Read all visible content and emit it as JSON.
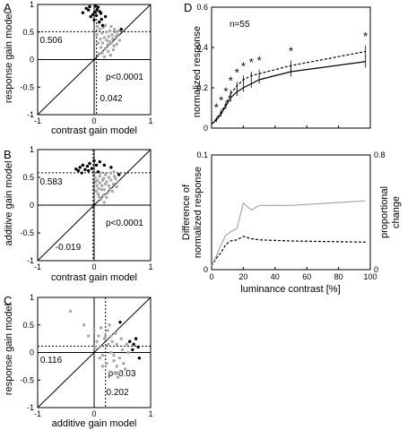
{
  "panel_labels": [
    "A",
    "B",
    "C",
    "D"
  ],
  "chart_data": [
    {
      "panel": "A",
      "type": "scatter",
      "xlabel": "contrast gain model",
      "ylabel": "response gain model",
      "xlim": [
        -1,
        1
      ],
      "ylim": [
        -1,
        1
      ],
      "xticks": [
        "-1",
        "0",
        "1"
      ],
      "yticks": [
        "-1",
        "-0.5",
        "0",
        "0.5",
        "1"
      ],
      "diagonal": true,
      "grid": false,
      "ref_x": 0.042,
      "ref_y": 0.506,
      "annotations": {
        "ref_y": "0.506",
        "ref_x": "0.042",
        "p": "p<0.0001"
      },
      "series": [
        {
          "color": "#000000",
          "values": [
            [
              -0.14,
              0.93
            ],
            [
              -0.08,
              0.96
            ],
            [
              0.02,
              0.97
            ],
            [
              0.07,
              0.95
            ],
            [
              -0.2,
              0.85
            ],
            [
              0.01,
              0.86
            ],
            [
              0.1,
              0.87
            ],
            [
              0.04,
              0.8
            ],
            [
              -0.06,
              0.78
            ],
            [
              0.13,
              0.73
            ],
            [
              0.2,
              0.78
            ],
            [
              -0.1,
              0.9
            ],
            [
              0.09,
              0.68
            ],
            [
              0.48,
              0.55
            ],
            [
              0.0,
              0.72
            ],
            [
              0.05,
              0.9
            ],
            [
              -0.02,
              0.82
            ],
            [
              0.15,
              0.62
            ],
            [
              0.12,
              0.84
            ]
          ]
        },
        {
          "color": "#a8a8a8",
          "values": [
            [
              0.06,
              0.6
            ],
            [
              0.1,
              0.55
            ],
            [
              0.14,
              0.48
            ],
            [
              0.18,
              0.4
            ],
            [
              0.22,
              0.35
            ],
            [
              0.26,
              0.42
            ],
            [
              0.3,
              0.3
            ],
            [
              0.35,
              0.25
            ],
            [
              0.32,
              0.45
            ],
            [
              0.28,
              0.52
            ],
            [
              0.38,
              0.5
            ],
            [
              0.42,
              0.45
            ],
            [
              0.45,
              0.35
            ],
            [
              0.4,
              0.28
            ],
            [
              0.2,
              0.2
            ],
            [
              0.25,
              0.15
            ],
            [
              0.15,
              0.3
            ],
            [
              0.12,
              0.22
            ],
            [
              0.33,
              0.38
            ],
            [
              0.05,
              0.45
            ],
            [
              0.08,
              0.1
            ],
            [
              0.18,
              0.05
            ],
            [
              0.36,
              0.55
            ],
            [
              0.22,
              0.5
            ],
            [
              0.3,
              0.6
            ],
            [
              0.16,
              0.58
            ],
            [
              0.44,
              0.52
            ],
            [
              0.27,
              0.33
            ],
            [
              0.11,
              0.37
            ],
            [
              0.24,
              0.27
            ],
            [
              0.2,
              0.62
            ],
            [
              0.39,
              0.42
            ],
            [
              0.34,
              0.18
            ],
            [
              0.14,
              0.12
            ],
            [
              0.29,
              0.08
            ],
            [
              0.07,
              0.3
            ]
          ]
        }
      ]
    },
    {
      "panel": "B",
      "type": "scatter",
      "xlabel": "contrast gain model",
      "ylabel": "additive gain model",
      "xlim": [
        -1,
        1
      ],
      "ylim": [
        -1,
        1
      ],
      "xticks": [
        "-1",
        "0",
        "1"
      ],
      "yticks": [
        "-1",
        "-0.5",
        "0",
        "0.5",
        "1"
      ],
      "diagonal": true,
      "grid": false,
      "ref_x": -0.019,
      "ref_y": 0.583,
      "annotations": {
        "ref_y": "0.583",
        "ref_x": "-0.019",
        "p": "p<0.0001"
      },
      "series": [
        {
          "color": "#000000",
          "values": [
            [
              -0.32,
              0.65
            ],
            [
              -0.28,
              0.62
            ],
            [
              -0.25,
              0.68
            ],
            [
              -0.2,
              0.72
            ],
            [
              -0.16,
              0.64
            ],
            [
              -0.12,
              0.7
            ],
            [
              -0.08,
              0.75
            ],
            [
              -0.04,
              0.66
            ],
            [
              0.0,
              0.8
            ],
            [
              0.04,
              0.72
            ],
            [
              -0.22,
              0.58
            ],
            [
              0.1,
              0.78
            ],
            [
              0.18,
              0.72
            ],
            [
              0.3,
              0.68
            ],
            [
              0.44,
              0.55
            ],
            [
              -0.1,
              0.62
            ],
            [
              0.07,
              0.6
            ]
          ]
        },
        {
          "color": "#a8a8a8",
          "values": [
            [
              0.02,
              0.5
            ],
            [
              0.06,
              0.45
            ],
            [
              0.1,
              0.4
            ],
            [
              0.14,
              0.35
            ],
            [
              0.18,
              0.28
            ],
            [
              0.08,
              0.3
            ],
            [
              0.04,
              0.25
            ],
            [
              0.22,
              0.42
            ],
            [
              0.26,
              0.5
            ],
            [
              0.3,
              0.45
            ],
            [
              0.34,
              0.38
            ],
            [
              0.16,
              0.18
            ],
            [
              0.12,
              0.1
            ],
            [
              0.2,
              0.55
            ],
            [
              0.38,
              0.48
            ],
            [
              0.28,
              0.3
            ],
            [
              0.1,
              0.52
            ],
            [
              0.05,
              0.35
            ],
            [
              0.24,
              0.22
            ],
            [
              0.15,
              0.45
            ],
            [
              0.35,
              0.6
            ],
            [
              0.42,
              0.42
            ],
            [
              0.09,
              0.15
            ],
            [
              0.18,
              0.05
            ],
            [
              0.32,
              0.25
            ],
            [
              0.26,
              0.35
            ],
            [
              0.03,
              0.42
            ],
            [
              0.22,
              0.14
            ],
            [
              0.13,
              0.28
            ],
            [
              0.4,
              0.33
            ],
            [
              0.07,
              0.2
            ],
            [
              0.36,
              0.52
            ],
            [
              0.2,
              0.38
            ],
            [
              0.29,
              0.58
            ],
            [
              0.11,
              0.58
            ],
            [
              0.17,
              0.48
            ]
          ]
        }
      ]
    },
    {
      "panel": "C",
      "type": "scatter",
      "xlabel": "additive gain model",
      "ylabel": "response gain model",
      "xlim": [
        -1,
        1
      ],
      "ylim": [
        -1,
        1
      ],
      "xticks": [
        "-1",
        "0",
        "1"
      ],
      "yticks": [
        "-1",
        "-0.5",
        "0",
        "0.5",
        "1"
      ],
      "diagonal": true,
      "grid": false,
      "ref_x": 0.202,
      "ref_y": 0.116,
      "annotations": {
        "ref_y": "0.116",
        "ref_x": "0.202",
        "p": "p=0.03"
      },
      "series": [
        {
          "color": "#000000",
          "values": [
            [
              0.63,
              0.2
            ],
            [
              0.7,
              0.15
            ],
            [
              0.74,
              0.25
            ],
            [
              0.78,
              0.1
            ],
            [
              0.8,
              -0.1
            ],
            [
              0.68,
              0.05
            ],
            [
              0.46,
              0.55
            ]
          ]
        },
        {
          "color": "#a8a8a8",
          "values": [
            [
              -0.42,
              0.75
            ],
            [
              -0.18,
              0.5
            ],
            [
              -0.1,
              0.3
            ],
            [
              0.0,
              0.4
            ],
            [
              0.05,
              0.2
            ],
            [
              0.1,
              0.1
            ],
            [
              0.15,
              -0.05
            ],
            [
              0.2,
              0.3
            ],
            [
              0.25,
              0.15
            ],
            [
              0.3,
              0.0
            ],
            [
              0.35,
              -0.15
            ],
            [
              0.4,
              -0.25
            ],
            [
              0.28,
              -0.35
            ],
            [
              0.45,
              -0.1
            ],
            [
              0.5,
              0.05
            ],
            [
              0.32,
              0.2
            ],
            [
              0.38,
              0.35
            ],
            [
              0.22,
              -0.2
            ],
            [
              0.12,
              0.45
            ],
            [
              0.18,
              0.25
            ],
            [
              0.42,
              -0.45
            ],
            [
              0.55,
              -0.3
            ],
            [
              0.6,
              0.0
            ],
            [
              0.27,
              0.5
            ],
            [
              0.08,
              0.3
            ],
            [
              0.48,
              0.25
            ],
            [
              0.35,
              -0.05
            ],
            [
              0.02,
              0.1
            ],
            [
              0.15,
              -0.25
            ],
            [
              0.3,
              0.3
            ],
            [
              0.52,
              -0.2
            ],
            [
              0.4,
              0.15
            ],
            [
              0.24,
              0.4
            ],
            [
              0.46,
              -0.35
            ],
            [
              0.1,
              -0.1
            ],
            [
              0.58,
              0.15
            ]
          ]
        }
      ]
    },
    {
      "panel": "D-top",
      "type": "line",
      "xlabel": "",
      "ylabel": "normalized response",
      "xlim": [
        0,
        100
      ],
      "ylim": [
        0,
        0.6
      ],
      "yticks": [
        "0",
        "0.2",
        "0.4",
        "0.6"
      ],
      "xticks": [
        "0",
        "20",
        "40",
        "60",
        "80",
        "100"
      ],
      "annotation": "n=55",
      "x": [
        0,
        3,
        6,
        9,
        12,
        16,
        20,
        25,
        30,
        50,
        97
      ],
      "series": [
        {
          "style": "solid",
          "values": [
            0.02,
            0.04,
            0.07,
            0.11,
            0.15,
            0.18,
            0.2,
            0.22,
            0.24,
            0.28,
            0.33
          ]
        },
        {
          "style": "dashed",
          "values": [
            0.02,
            0.045,
            0.08,
            0.12,
            0.17,
            0.21,
            0.24,
            0.26,
            0.27,
            0.31,
            0.38
          ]
        }
      ],
      "error": [
        0.005,
        0.01,
        0.012,
        0.015,
        0.02,
        0.02,
        0.02,
        0.02,
        0.02,
        0.025,
        0.03
      ],
      "significance_x": [
        3,
        6,
        9,
        12,
        16,
        20,
        25,
        30,
        50,
        97
      ],
      "significance_label": "*"
    },
    {
      "panel": "D-bottom",
      "type": "line",
      "xlabel": "luminance contrast [%]",
      "ylabel": [
        "Difference of",
        "normalized response"
      ],
      "ylabel_right": [
        "proportional",
        "change"
      ],
      "xlim": [
        0,
        100
      ],
      "ylim": [
        0,
        0.1
      ],
      "ylim_right": [
        0,
        0.8
      ],
      "xticks": [
        "0",
        "20",
        "40",
        "60",
        "80",
        "100"
      ],
      "yticks": [
        "0",
        "0.1"
      ],
      "yticks_right": [
        "0",
        "0.8"
      ],
      "x": [
        0,
        3,
        6,
        9,
        12,
        16,
        20,
        25,
        30,
        50,
        97
      ],
      "series": [
        {
          "style": "dashed",
          "color": "#000000",
          "values": [
            0.003,
            0.01,
            0.015,
            0.022,
            0.025,
            0.026,
            0.029,
            0.027,
            0.026,
            0.025,
            0.024
          ]
        },
        {
          "style": "solid",
          "color": "#a8a8a8",
          "values": [
            0.003,
            0.012,
            0.022,
            0.03,
            0.033,
            0.036,
            0.058,
            0.052,
            0.056,
            0.056,
            0.06
          ]
        }
      ]
    }
  ]
}
